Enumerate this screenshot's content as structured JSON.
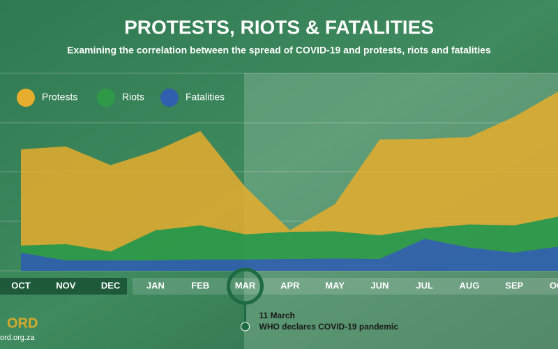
{
  "chart_data": {
    "type": "stacked-area",
    "title": "PROTESTS, RIOTS & FATALITIES",
    "subtitle": "Examining the correlation between the spread of COVID-19 and protests, riots and fatalities",
    "categories": [
      "OCT",
      "NOV",
      "DEC",
      "JAN",
      "FEB",
      "MAR",
      "APR",
      "MAY",
      "JUN",
      "JUL",
      "AUG",
      "SEP",
      "OCT"
    ],
    "series": [
      {
        "name": "Protests",
        "color": "#e6ad2e",
        "values": [
          195,
          198,
          175,
          161,
          191,
          96,
          3,
          55,
          194,
          181,
          177,
          220,
          254
        ]
      },
      {
        "name": "Riots",
        "color": "#2e9a48",
        "values": [
          14,
          33,
          18,
          61,
          69,
          51,
          55,
          55,
          48,
          21,
          47,
          55,
          61
        ]
      },
      {
        "name": "Fatalities",
        "color": "#2f5fae",
        "values": [
          37,
          21,
          21,
          21,
          23,
          23,
          24,
          25,
          24,
          65,
          47,
          37,
          49
        ]
      }
    ],
    "ylim": [
      0,
      400
    ],
    "annotation": {
      "category": 5,
      "date": "11 March",
      "text": "WHO declares COVID-19 pandemic"
    },
    "footer": {
      "logo": "ORD",
      "url": "ord.org.za"
    }
  }
}
